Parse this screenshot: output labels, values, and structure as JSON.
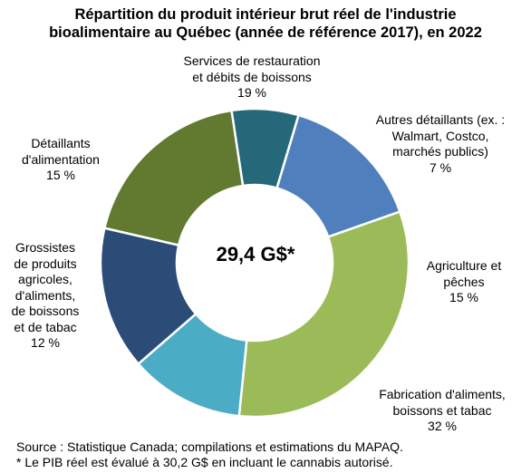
{
  "chart_data": {
    "type": "pie",
    "title_lines": [
      "Répartition du produit intérieur brut réel de l'industrie",
      "bioalimentaire au Québec (année de référence 2017), en 2022"
    ],
    "center_label": "29,4 G$*",
    "slices": [
      {
        "label_lines": [
          "Services de restauration",
          "et débits de boissons"
        ],
        "pct_label": "19 %",
        "value": 19,
        "color": "#617a2f"
      },
      {
        "label_lines": [
          "Autres détaillants (ex. :",
          "Walmart, Costco,",
          "marchés publics)"
        ],
        "pct_label": "7 %",
        "value": 7,
        "color": "#25687a"
      },
      {
        "label_lines": [
          "Agriculture et",
          "pêches"
        ],
        "pct_label": "15 %",
        "value": 15,
        "color": "#4f80bd"
      },
      {
        "label_lines": [
          "Fabrication d'aliments,",
          "boissons et tabac"
        ],
        "pct_label": "32 %",
        "value": 32,
        "color": "#9bbb59"
      },
      {
        "label_lines": [
          "Grossistes",
          "de produits",
          "agricoles,",
          "d'aliments,",
          "de boissons",
          "et de tabac"
        ],
        "pct_label": "12 %",
        "value": 12,
        "color": "#4bacc6"
      },
      {
        "label_lines": [
          "Détaillants",
          "d'alimentation"
        ],
        "pct_label": "15 %",
        "value": 15,
        "color": "#2c4c78"
      }
    ]
  },
  "footnotes": {
    "source": "Source : Statistique Canada; compilations et estimations du MAPAQ.",
    "note": "* Le PIB réel est évalué à 30,2 G$ en incluant le cannabis autorisé."
  }
}
